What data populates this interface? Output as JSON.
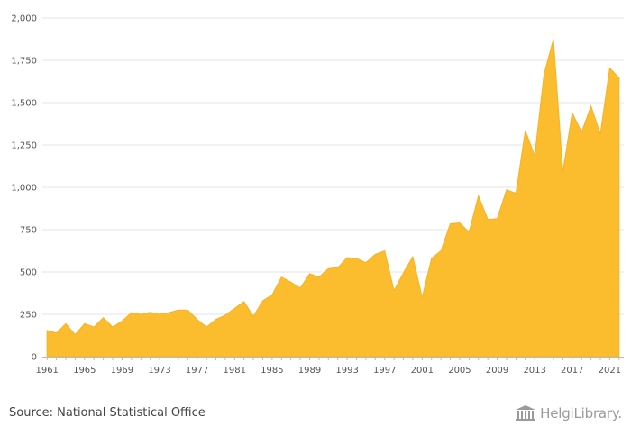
{
  "chart_data": {
    "type": "area",
    "title": "",
    "xlabel": "",
    "ylabel": "",
    "color": "#FBBC2E",
    "grid": true,
    "ylim": [
      0,
      2000
    ],
    "yticks": [
      0,
      250,
      500,
      750,
      1000,
      1250,
      1500,
      1750,
      2000
    ],
    "ytick_labels": [
      "0",
      "250",
      "500",
      "750",
      "1,000",
      "1,250",
      "1,500",
      "1,750",
      "2,000"
    ],
    "xticks": [
      1961,
      1965,
      1969,
      1973,
      1977,
      1981,
      1985,
      1989,
      1993,
      1997,
      2001,
      2005,
      2009,
      2013,
      2017,
      2021
    ],
    "xtick_labels": [
      "1961",
      "1965",
      "1969",
      "1973",
      "1977",
      "1981",
      "1985",
      "1989",
      "1993",
      "1997",
      "2001",
      "2005",
      "2009",
      "2013",
      "2017",
      "2021"
    ],
    "xlim": [
      1960.5,
      2022.5
    ],
    "x": [
      1961,
      1962,
      1963,
      1964,
      1965,
      1966,
      1967,
      1968,
      1969,
      1970,
      1971,
      1972,
      1973,
      1974,
      1975,
      1976,
      1977,
      1978,
      1979,
      1980,
      1981,
      1982,
      1983,
      1984,
      1985,
      1986,
      1987,
      1988,
      1989,
      1990,
      1991,
      1992,
      1993,
      1994,
      1995,
      1996,
      1997,
      1998,
      1999,
      2000,
      2001,
      2002,
      2003,
      2004,
      2005,
      2006,
      2007,
      2008,
      2009,
      2010,
      2011,
      2012,
      2013,
      2014,
      2015,
      2016,
      2017,
      2018,
      2019,
      2020,
      2021,
      2022
    ],
    "values": [
      155,
      140,
      195,
      130,
      195,
      175,
      230,
      175,
      210,
      260,
      250,
      262,
      250,
      260,
      275,
      275,
      220,
      175,
      220,
      245,
      285,
      325,
      238,
      330,
      365,
      470,
      440,
      405,
      490,
      470,
      520,
      525,
      585,
      580,
      555,
      605,
      625,
      390,
      495,
      590,
      350,
      580,
      625,
      785,
      790,
      735,
      950,
      810,
      815,
      985,
      965,
      1335,
      1185,
      1670,
      1875,
      1090,
      1440,
      1325,
      1480,
      1315,
      1705,
      1645
    ]
  },
  "footer": {
    "source": "Source: National Statistical Office",
    "logo_text": "HelgiLibrary.",
    "logo_icon": "library-building-icon"
  }
}
